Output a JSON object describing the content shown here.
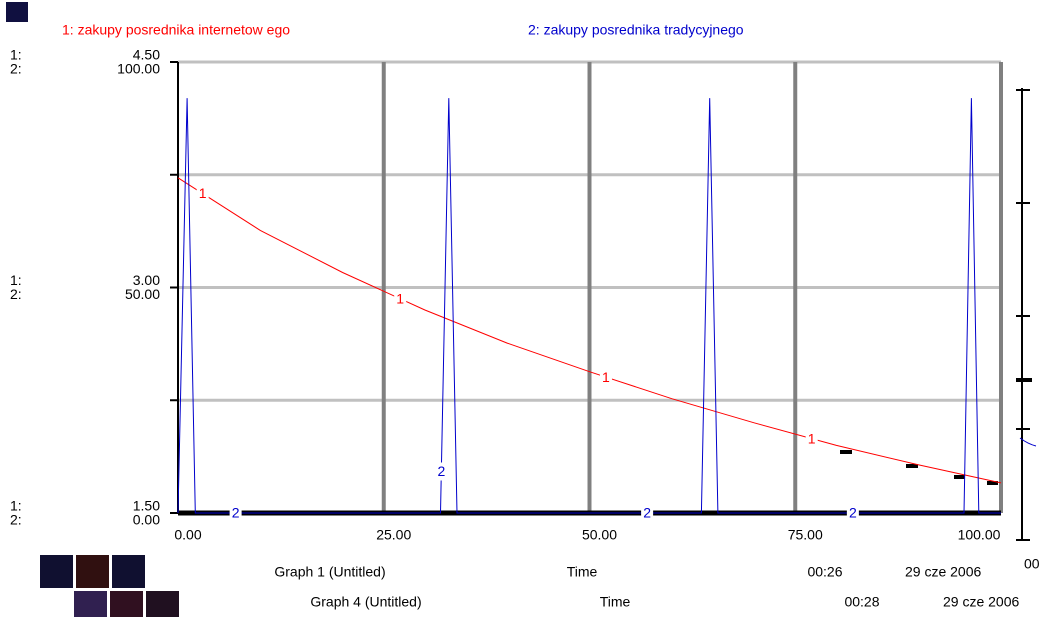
{
  "chart_data": {
    "type": "line",
    "xlim": [
      0,
      100
    ],
    "xticks": [
      {
        "value": 0,
        "label": "0.00"
      },
      {
        "value": 25,
        "label": "25.00"
      },
      {
        "value": 50,
        "label": "50.00"
      },
      {
        "value": 75,
        "label": "75.00"
      },
      {
        "value": 100,
        "label": "100.00"
      }
    ],
    "ylim": [
      1.5,
      4.5
    ],
    "yticks": [
      {
        "value": 1.5,
        "label": "1.50"
      },
      {
        "value": 3,
        "label": "3.00"
      },
      {
        "value": 4.5,
        "label": "4.50"
      }
    ],
    "y2lim": [
      0,
      100
    ],
    "y2ticks": [
      {
        "value": 0,
        "label": "0.00"
      },
      {
        "value": 50,
        "label": "50.00"
      },
      {
        "value": 100,
        "label": "100.00"
      }
    ],
    "y_axis_prefix": "1:",
    "y2_axis_prefix": "2:",
    "grid": true,
    "series": [
      {
        "name": "1: zakupy posrednika internetow ego",
        "label": "1",
        "color": "#ff0000",
        "x": [
          0,
          10,
          20,
          30,
          40,
          50,
          60,
          70,
          80,
          90,
          100
        ],
        "values": [
          3.73,
          3.38,
          3.1,
          2.85,
          2.63,
          2.44,
          2.26,
          2.1,
          1.95,
          1.82,
          1.7
        ]
      },
      {
        "name": "2: zakupy posrednika tradycyjnego",
        "label": "2",
        "color": "#0000cc",
        "axis": "y2",
        "x": [
          0,
          1.1,
          2.1,
          31.9,
          32.9,
          33.9,
          63.6,
          64.6,
          65.6,
          95.5,
          96.4,
          97.3,
          100
        ],
        "values": [
          0,
          92,
          0,
          0,
          92,
          0,
          0,
          92,
          0,
          0,
          92,
          0,
          0
        ]
      }
    ]
  },
  "footer": {
    "rows": [
      {
        "graph": "Graph 1 (Untitled)",
        "axis": "Time",
        "time": "00:26",
        "date": "29 cze 2006"
      },
      {
        "graph": "Graph 4 (Untitled)",
        "axis": "Time",
        "time": "00:28",
        "date": "29 cze 2006"
      }
    ],
    "fragment": "00"
  }
}
